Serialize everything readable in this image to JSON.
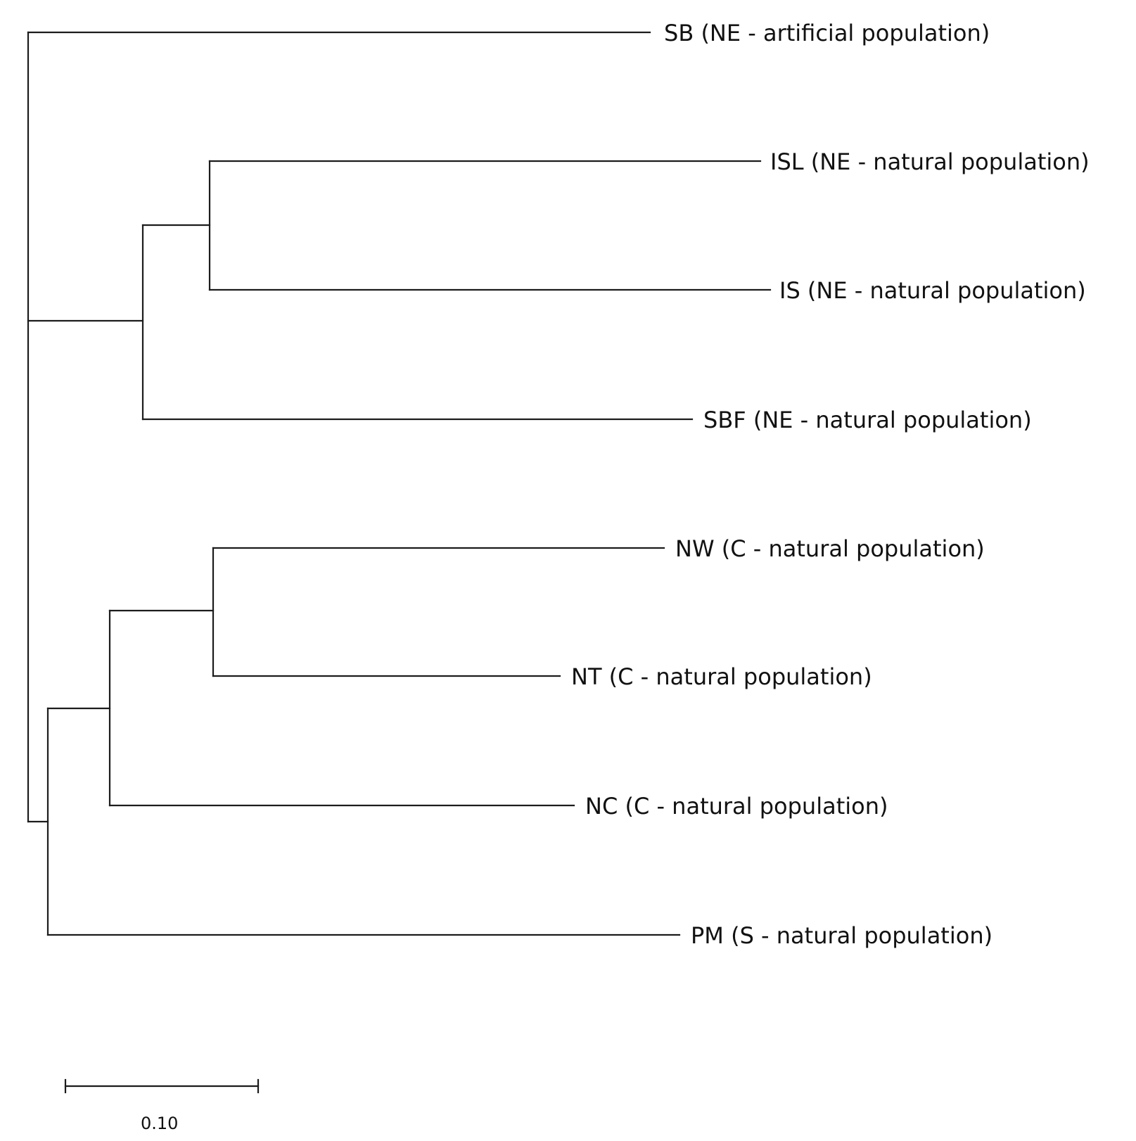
{
  "tree": {
    "leaves": [
      {
        "id": "SB",
        "label": "SB (NE - artificial population)"
      },
      {
        "id": "ISL",
        "label": "ISL (NE - natural population)"
      },
      {
        "id": "IS",
        "label": "IS (NE - natural population)"
      },
      {
        "id": "SBF",
        "label": "SBF (NE - natural population)"
      },
      {
        "id": "NW",
        "label": "NW (C - natural population)"
      },
      {
        "id": "NT",
        "label": "NT (C - natural population)"
      },
      {
        "id": "NC",
        "label": "NC (C - natural population)"
      },
      {
        "id": "PM",
        "label": "PM (S - natural population)"
      }
    ],
    "scale_bar": {
      "length": 0.1,
      "label": "0.10"
    }
  }
}
